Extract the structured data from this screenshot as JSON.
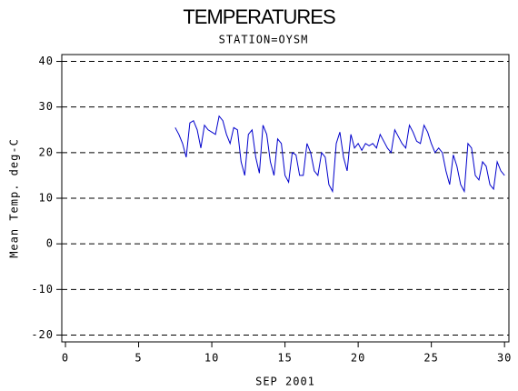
{
  "chart_data": {
    "type": "line",
    "title": "TEMPERATURES",
    "subtitle": "STATION=OYSM",
    "x_label": "SEP 2001",
    "y_label": "Mean Temp. deg-C",
    "color": "#0000cc",
    "grid": true,
    "xlim": [
      -0.25,
      30.3
    ],
    "ylim": [
      -21.5,
      41.5
    ],
    "xticks": [
      0,
      5,
      10,
      15,
      20,
      25,
      30
    ],
    "yticks": [
      -20,
      -10,
      0,
      10,
      20,
      30,
      40
    ],
    "x": [
      7.5,
      7.75,
      8,
      8.25,
      8.5,
      8.75,
      9,
      9.25,
      9.5,
      9.75,
      10,
      10.25,
      10.5,
      10.75,
      11,
      11.25,
      11.5,
      11.75,
      12,
      12.25,
      12.5,
      12.75,
      13,
      13.25,
      13.5,
      13.75,
      14,
      14.25,
      14.5,
      14.75,
      15,
      15.25,
      15.5,
      15.75,
      16,
      16.25,
      16.5,
      16.75,
      17,
      17.25,
      17.5,
      17.75,
      18,
      18.25,
      18.5,
      18.75,
      19,
      19.25,
      19.5,
      19.75,
      20,
      20.25,
      20.5,
      20.75,
      21,
      21.25,
      21.5,
      21.75,
      22,
      22.25,
      22.5,
      22.75,
      23,
      23.25,
      23.5,
      23.75,
      24,
      24.25,
      24.5,
      24.75,
      25,
      25.25,
      25.5,
      25.75,
      26,
      26.25,
      26.5,
      26.75,
      27,
      27.25,
      27.5,
      27.75,
      28,
      28.25,
      28.5,
      28.75,
      29,
      29.25,
      29.5,
      29.75,
      30
    ],
    "values": [
      25.5,
      24,
      22,
      19,
      26.5,
      27,
      25,
      21,
      26,
      25,
      24.5,
      24,
      28,
      27,
      24,
      22,
      25.5,
      25,
      18,
      15,
      24,
      25,
      19,
      15.5,
      26,
      24,
      18,
      15,
      23,
      22,
      15,
      13.5,
      20,
      19.5,
      15,
      15,
      22,
      20,
      16,
      15,
      20,
      19,
      13,
      11.5,
      22,
      24.5,
      19,
      16,
      24,
      21,
      22,
      20.5,
      22,
      21.5,
      22,
      21,
      24,
      22.5,
      21,
      20,
      25,
      23.5,
      22,
      21,
      26,
      24.5,
      22.5,
      22,
      26,
      24.5,
      22,
      20,
      21,
      20,
      16,
      13,
      19.5,
      17,
      13,
      11.5,
      22,
      21,
      15,
      14,
      18,
      17,
      13,
      12,
      18,
      16,
      15
    ]
  }
}
